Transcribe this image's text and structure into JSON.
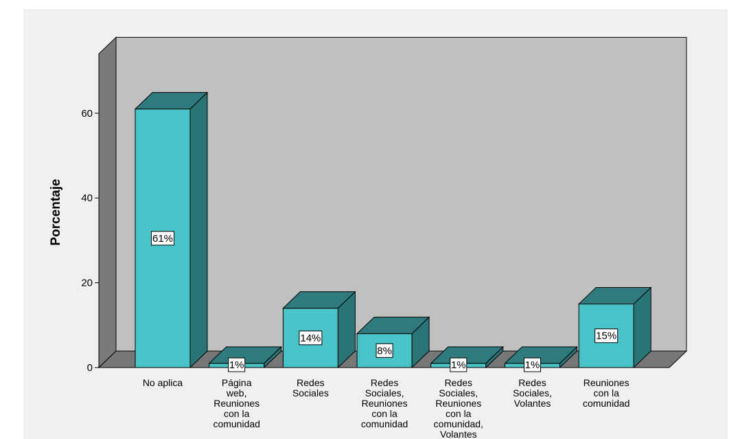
{
  "chart_data": {
    "type": "bar",
    "categories": [
      "No aplica",
      "Página web, Reuniones con la comunidad",
      "Redes Sociales",
      "Redes Sociales, Reuniones con la comunidad",
      "Redes Sociales, Reuniones con la comunidad, Volantes",
      "Redes Sociales, Volantes",
      "Reuniones con la comunidad"
    ],
    "category_lines": [
      [
        "No aplica"
      ],
      [
        "Página",
        "web,",
        "Reuniones",
        "con la",
        "comunidad"
      ],
      [
        "Redes",
        "Sociales"
      ],
      [
        "Redes",
        "Sociales,",
        "Reuniones",
        "con la",
        "comunidad"
      ],
      [
        "Redes",
        "Sociales,",
        "Reuniones",
        "con la",
        "comunidad,",
        "Volantes"
      ],
      [
        "Redes",
        "Sociales,",
        "Volantes"
      ],
      [
        "Reuniones",
        "con la",
        "comunidad"
      ]
    ],
    "values": [
      61,
      1,
      14,
      8,
      1,
      1,
      15
    ],
    "data_labels": [
      "61%",
      "1%",
      "14%",
      "8%",
      "1%",
      "1%",
      "15%"
    ],
    "ylabel": "Porcentaje",
    "xlabel": "",
    "ylim": [
      0,
      74
    ],
    "yticks": [
      0,
      20,
      40,
      60
    ],
    "grid": false,
    "legend": "none",
    "colors": {
      "bar_front": "#48c3c7",
      "bar_side": "#2a7377",
      "bar_top": "#2e7a7e",
      "back_wall": "#c0c0c0",
      "floor": "#777777",
      "left_wall": "#7a7a7a",
      "outline": "#000000",
      "label_box": "#ffffff",
      "frame_background": "#f0f0f0"
    }
  }
}
